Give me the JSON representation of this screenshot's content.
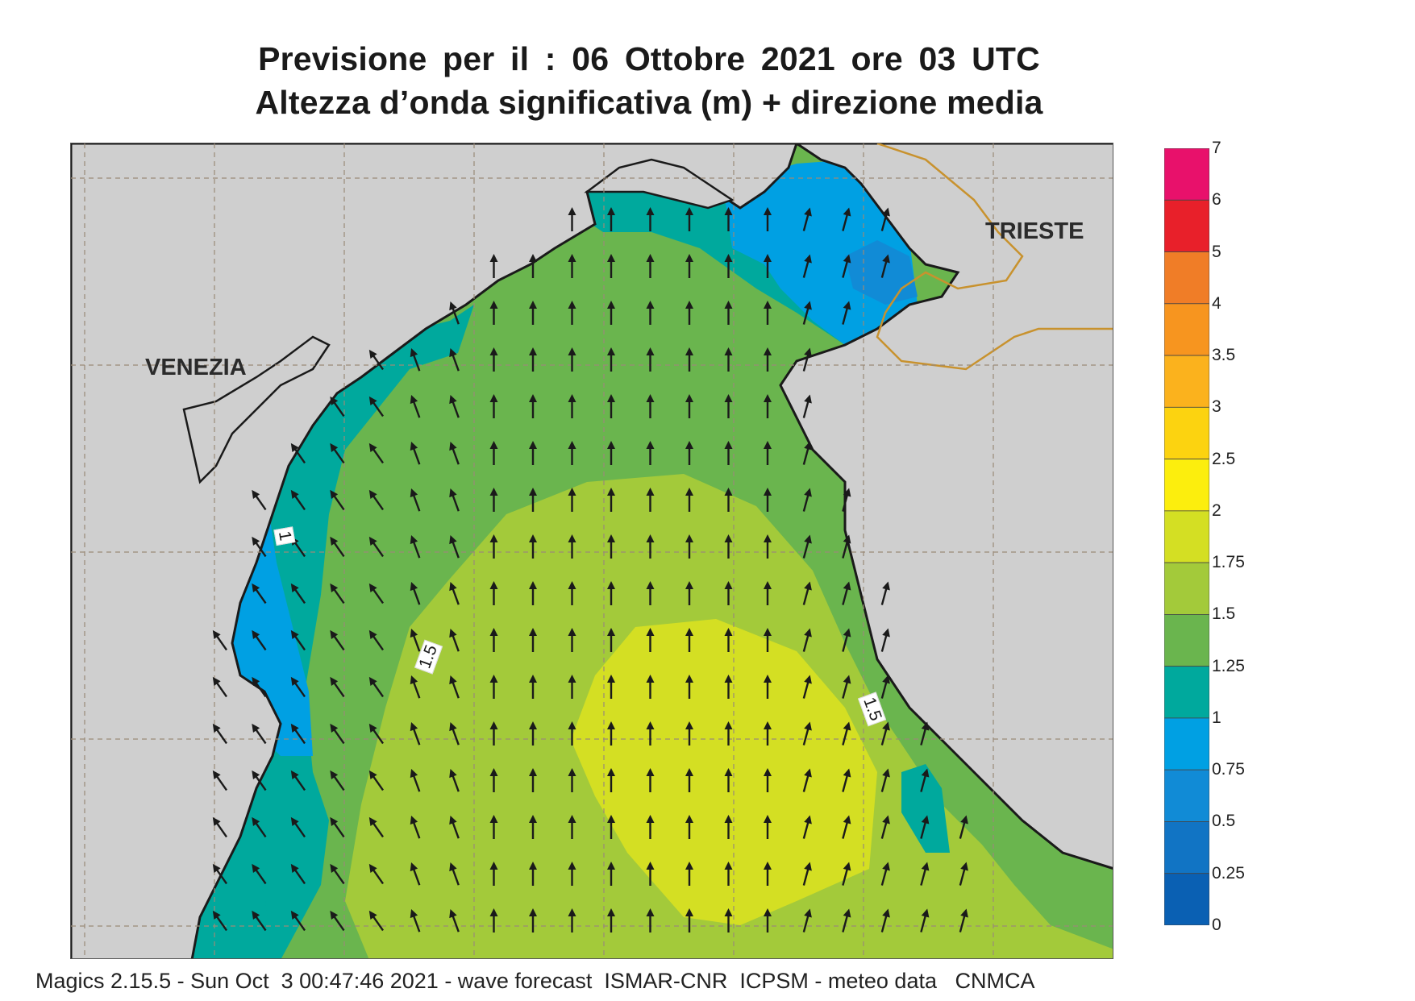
{
  "header": {
    "title_line1": "Previsione per il  :  06  Ottobre  2021   ore 03 UTC",
    "title_line2": "Altezza d’onda significativa (m) + direzione media"
  },
  "map": {
    "places": {
      "venezia": "VENEZIA",
      "trieste": "TRIESTE"
    },
    "contour_labels": [
      "1",
      "1.5",
      "1.5"
    ],
    "colors": {
      "land": "#cfcfcf",
      "coast": "#1a1a1a",
      "border": "#c8922e",
      "grid": "#9a8a78",
      "arrow": "#1a1a1a"
    }
  },
  "legend": {
    "ticks": [
      "7",
      "6",
      "5",
      "4",
      "3.5",
      "3",
      "2.5",
      "2",
      "1.75",
      "1.5",
      "1.25",
      "1",
      "0.75",
      "0.5",
      "0.25",
      "0"
    ],
    "colors": [
      "#e8116b",
      "#e8202a",
      "#f07d27",
      "#f7951f",
      "#fbb21d",
      "#fcd310",
      "#fcee0d",
      "#d4df23",
      "#a3ca3a",
      "#6ab54e",
      "#00a99d",
      "#00a0e3",
      "#118bd6",
      "#1174c4",
      "#0a60b3"
    ]
  },
  "footer": {
    "text": "Magics 2.15.5 - Sun Oct  3 00:47:46 2021 - wave forecast  ISMAR-CNR  ICPSM - meteo data   CNMCA"
  }
}
